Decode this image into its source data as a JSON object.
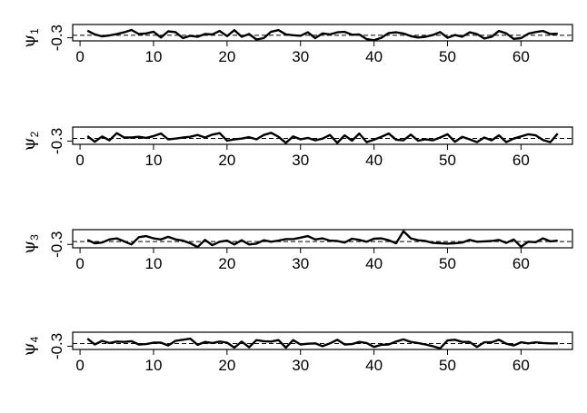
{
  "chart_data": [
    {
      "type": "line",
      "ylabel": "ψ",
      "ylabel_subscript": "1",
      "x": [
        1,
        2,
        3,
        4,
        5,
        6,
        7,
        8,
        9,
        10,
        11,
        12,
        13,
        14,
        15,
        16,
        17,
        18,
        19,
        20,
        21,
        22,
        23,
        24,
        25,
        26,
        27,
        28,
        29,
        30,
        31,
        32,
        33,
        34,
        35,
        36,
        37,
        38,
        39,
        40,
        41,
        42,
        43,
        44,
        45,
        46,
        47,
        48,
        49,
        50,
        51,
        52,
        53,
        54,
        55,
        56,
        57,
        58,
        59,
        60,
        61,
        62,
        63,
        64,
        65
      ],
      "values": [
        0.12,
        -0.1,
        -0.22,
        -0.16,
        -0.08,
        0.02,
        0.16,
        -0.08,
        -0.04,
        0.06,
        -0.28,
        0.08,
        0.03,
        -0.32,
        -0.18,
        -0.24,
        -0.08,
        -0.1,
        0.1,
        -0.2,
        0.15,
        -0.24,
        -0.08,
        -0.4,
        -0.32,
        0.06,
        0.15,
        -0.1,
        -0.15,
        -0.18,
        0.02,
        -0.32,
        -0.04,
        -0.1,
        0.02,
        0.05,
        -0.12,
        -0.1,
        -0.38,
        -0.44,
        -0.3,
        -0.02,
        0.02,
        -0.05,
        -0.2,
        -0.28,
        -0.24,
        -0.14,
        0.04,
        -0.3,
        -0.14,
        -0.24,
        0.02,
        -0.08,
        -0.34,
        -0.24,
        0.1,
        -0.04,
        -0.36,
        -0.32,
        -0.06,
        0.04,
        0.1,
        -0.08,
        -0.06
      ],
      "hline": -0.15,
      "yticks": [
        -0.3
      ],
      "xticks": [
        0,
        10,
        20,
        30,
        40,
        50,
        60
      ],
      "xlim": [
        -1,
        67
      ],
      "ylim": [
        -0.48,
        0.48
      ]
    },
    {
      "type": "line",
      "ylabel": "ψ",
      "ylabel_subscript": "2",
      "x": [
        1,
        2,
        3,
        4,
        5,
        6,
        7,
        8,
        9,
        10,
        11,
        12,
        13,
        14,
        15,
        16,
        17,
        18,
        19,
        20,
        21,
        22,
        23,
        24,
        25,
        26,
        27,
        28,
        29,
        30,
        31,
        32,
        33,
        34,
        35,
        36,
        37,
        38,
        39,
        40,
        41,
        42,
        43,
        44,
        45,
        46,
        47,
        48,
        49,
        50,
        51,
        52,
        53,
        54,
        55,
        56,
        57,
        58,
        59,
        60,
        61,
        62,
        63,
        64,
        65
      ],
      "values": [
        -0.02,
        -0.34,
        -0.04,
        -0.26,
        0.14,
        -0.1,
        -0.1,
        -0.06,
        -0.12,
        -0.02,
        0.12,
        -0.2,
        -0.16,
        -0.1,
        -0.06,
        0.04,
        -0.1,
        0.06,
        0.14,
        -0.28,
        -0.2,
        -0.16,
        -0.08,
        -0.2,
        0.04,
        0.16,
        -0.06,
        -0.4,
        -0.04,
        -0.2,
        -0.12,
        -0.26,
        -0.16,
        0.04,
        -0.4,
        0.02,
        -0.28,
        0.12,
        -0.36,
        -0.22,
        -0.06,
        0.12,
        -0.22,
        -0.26,
        0.06,
        -0.28,
        -0.2,
        -0.26,
        -0.1,
        0.08,
        -0.34,
        -0.06,
        -0.2,
        -0.36,
        -0.1,
        -0.26,
        0.02,
        -0.36,
        -0.16,
        -0.04,
        0.08,
        0.02,
        -0.24,
        -0.36,
        0.12
      ],
      "hline": -0.15,
      "yticks": [
        -0.3
      ],
      "xticks": [
        0,
        10,
        20,
        30,
        40,
        50,
        60
      ],
      "xlim": [
        -1,
        67
      ],
      "ylim": [
        -0.48,
        0.48
      ]
    },
    {
      "type": "line",
      "ylabel": "ψ",
      "ylabel_subscript": "3",
      "x": [
        1,
        2,
        3,
        4,
        5,
        6,
        7,
        8,
        9,
        10,
        11,
        12,
        13,
        14,
        15,
        16,
        17,
        18,
        19,
        20,
        21,
        22,
        23,
        24,
        25,
        26,
        27,
        28,
        29,
        30,
        31,
        32,
        33,
        34,
        35,
        36,
        37,
        38,
        39,
        40,
        41,
        42,
        43,
        44,
        45,
        46,
        47,
        48,
        49,
        50,
        51,
        52,
        53,
        54,
        55,
        56,
        57,
        58,
        59,
        60,
        61,
        62,
        63,
        64,
        65
      ],
      "values": [
        -0.06,
        -0.24,
        -0.2,
        -0.04,
        0.02,
        -0.14,
        -0.3,
        0.08,
        0.14,
        0.02,
        -0.04,
        0.1,
        -0.04,
        -0.1,
        -0.24,
        -0.44,
        -0.06,
        -0.34,
        -0.16,
        -0.1,
        -0.3,
        -0.08,
        -0.3,
        -0.26,
        -0.08,
        -0.16,
        -0.1,
        -0.02,
        -0.02,
        0.06,
        0.14,
        -0.04,
        0.02,
        -0.1,
        -0.12,
        -0.2,
        0.0,
        -0.06,
        -0.16,
        0.0,
        0.02,
        -0.08,
        -0.24,
        0.4,
        0.02,
        -0.08,
        -0.12,
        -0.22,
        -0.24,
        -0.26,
        -0.24,
        -0.2,
        -0.06,
        -0.16,
        -0.14,
        -0.12,
        -0.06,
        -0.22,
        -0.04,
        -0.42,
        -0.16,
        -0.18,
        0.02,
        -0.14,
        -0.1
      ],
      "hline": -0.15,
      "yticks": [
        -0.3
      ],
      "xticks": [
        0,
        10,
        20,
        30,
        40,
        50,
        60
      ],
      "xlim": [
        -1,
        67
      ],
      "ylim": [
        -0.48,
        0.48
      ]
    },
    {
      "type": "line",
      "ylabel": "ψ",
      "ylabel_subscript": "4",
      "x": [
        1,
        2,
        3,
        4,
        5,
        6,
        7,
        8,
        9,
        10,
        11,
        12,
        13,
        14,
        15,
        16,
        17,
        18,
        19,
        20,
        21,
        22,
        23,
        24,
        25,
        26,
        27,
        28,
        29,
        30,
        31,
        32,
        33,
        34,
        35,
        36,
        37,
        38,
        39,
        40,
        41,
        42,
        43,
        44,
        45,
        46,
        47,
        48,
        49,
        50,
        51,
        52,
        53,
        54,
        55,
        56,
        57,
        58,
        59,
        60,
        61,
        62,
        63,
        64,
        65
      ],
      "values": [
        0.12,
        -0.2,
        0.0,
        -0.12,
        -0.04,
        -0.06,
        -0.02,
        -0.2,
        -0.18,
        -0.1,
        -0.1,
        -0.26,
        0.0,
        0.06,
        0.12,
        -0.22,
        -0.06,
        -0.12,
        -0.04,
        -0.1,
        -0.38,
        -0.04,
        -0.36,
        0.04,
        -0.02,
        -0.04,
        0.04,
        -0.38,
        0.04,
        -0.2,
        -0.16,
        -0.14,
        -0.3,
        -0.14,
        0.06,
        -0.2,
        -0.18,
        -0.06,
        -0.12,
        -0.34,
        -0.22,
        -0.2,
        -0.04,
        0.08,
        -0.06,
        -0.12,
        -0.2,
        -0.3,
        -0.42,
        0.02,
        0.06,
        -0.06,
        -0.06,
        -0.34,
        -0.08,
        -0.08,
        0.06,
        -0.16,
        -0.26,
        -0.08,
        -0.14,
        -0.08,
        -0.12,
        -0.14,
        -0.14
      ],
      "hline": -0.15,
      "yticks": [
        -0.3
      ],
      "xticks": [
        0,
        10,
        20,
        30,
        40,
        50,
        60
      ],
      "xlim": [
        -1,
        67
      ],
      "ylim": [
        -0.48,
        0.48
      ]
    }
  ]
}
